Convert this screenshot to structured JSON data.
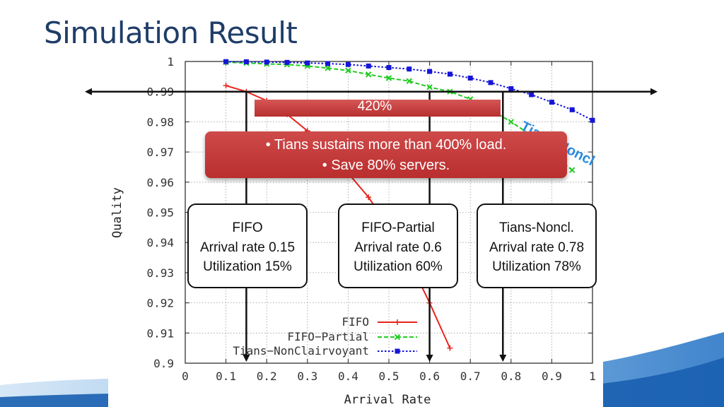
{
  "slide": {
    "title": "Simulation Result"
  },
  "callout": {
    "bar_label": "420%",
    "bullets": [
      "Tians sustains more than 400% load.",
      "Save 80% servers."
    ]
  },
  "overlay_label": "Tians-Noncl",
  "boxes": [
    {
      "name": "FIFO",
      "line1": "FIFO",
      "line2": "Arrival rate 0.15",
      "line3": "Utilization 15%",
      "x": 0.15
    },
    {
      "name": "FIFO-Partial",
      "line1": "FIFO-Partial",
      "line2": "Arrival rate 0.6",
      "line3": "Utilization 60%",
      "x": 0.6
    },
    {
      "name": "Tians-Noncl",
      "line1": "Tians-Noncl.",
      "line2": "Arrival rate 0.78",
      "line3": "Utilization 78%",
      "x": 0.78
    }
  ],
  "colors": {
    "title": "#1f3d68",
    "callout": "#c03535",
    "fifo": "#e8231c",
    "fifo_partial": "#22cc22",
    "tians": "#1515d8"
  },
  "chart_data": {
    "type": "line",
    "xlabel": "Arrival Rate",
    "ylabel": "Quality",
    "xlim": [
      0,
      1
    ],
    "ylim": [
      0.9,
      1
    ],
    "x_ticks": [
      "0",
      "0.1",
      "0.2",
      "0.3",
      "0.4",
      "0.5",
      "0.6",
      "0.7",
      "0.8",
      "0.9",
      "1"
    ],
    "y_ticks": [
      "0.9",
      "0.91",
      "0.92",
      "0.93",
      "0.94",
      "0.95",
      "0.96",
      "0.97",
      "0.98",
      "0.99",
      "1"
    ],
    "grid": true,
    "legend_position": "bottom-left",
    "reference_line_y": 0.99,
    "series": [
      {
        "name": "FIFO",
        "x": [
          0.1,
          0.15,
          0.2,
          0.25,
          0.3,
          0.35,
          0.4,
          0.45,
          0.5,
          0.55,
          0.6,
          0.65
        ],
        "y": [
          0.992,
          0.99,
          0.987,
          0.9825,
          0.977,
          0.971,
          0.963,
          0.955,
          0.945,
          0.934,
          0.92,
          0.905
        ]
      },
      {
        "name": "FIFO−Partial",
        "x": [
          0.1,
          0.15,
          0.2,
          0.25,
          0.3,
          0.35,
          0.4,
          0.45,
          0.5,
          0.55,
          0.6,
          0.65,
          0.7,
          0.75,
          0.8,
          0.85,
          0.9,
          0.95
        ],
        "y": [
          0.99975,
          0.9995,
          0.9992,
          0.999,
          0.9985,
          0.9978,
          0.997,
          0.9957,
          0.9945,
          0.9935,
          0.9915,
          0.99,
          0.9875,
          0.984,
          0.98,
          0.9755,
          0.9693,
          0.964
        ]
      },
      {
        "name": "Tians−NonClairvoyant",
        "x": [
          0.1,
          0.15,
          0.2,
          0.25,
          0.3,
          0.35,
          0.4,
          0.45,
          0.5,
          0.55,
          0.6,
          0.65,
          0.7,
          0.75,
          0.8,
          0.85,
          0.9,
          0.95,
          1.0
        ],
        "y": [
          0.99995,
          0.9999,
          0.9998,
          0.9997,
          0.9995,
          0.9993,
          0.999,
          0.9985,
          0.998,
          0.9975,
          0.9967,
          0.9958,
          0.9945,
          0.993,
          0.991,
          0.989,
          0.9865,
          0.984,
          0.9805
        ]
      }
    ]
  }
}
